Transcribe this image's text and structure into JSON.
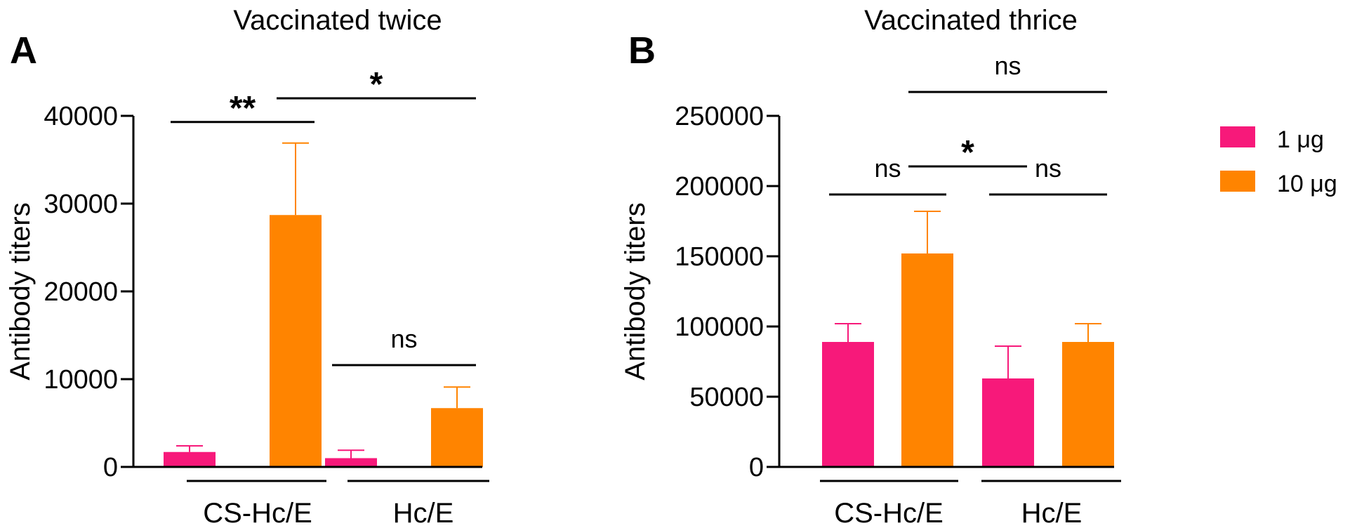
{
  "colors": {
    "one_ug": "#F7197A",
    "ten_ug": "#FF8400",
    "axis": "#000000"
  },
  "legend": [
    {
      "label": "1 μg",
      "color": "#F7197A"
    },
    {
      "label": "10 μg",
      "color": "#FF8400"
    }
  ],
  "chart_data": [
    {
      "type": "bar",
      "panel": "A",
      "title": "Vaccinated twice",
      "xlabel": "",
      "ylabel": "Antibody titers",
      "ylim": [
        0,
        40000
      ],
      "yticks": [
        0,
        10000,
        20000,
        30000,
        40000
      ],
      "ytick_labels": [
        "0",
        "10000",
        "20000",
        "30000",
        "40000"
      ],
      "groups": [
        "CS-Hc/E",
        "Hc/E"
      ],
      "series": [
        {
          "name": "1 μg",
          "values": [
            1700,
            1000
          ],
          "errors": [
            700,
            900
          ]
        },
        {
          "name": "10 μg",
          "values": [
            28700,
            6700
          ],
          "errors": [
            8200,
            2400
          ]
        }
      ],
      "significance": [
        {
          "label": "**",
          "from": [
            0,
            0
          ],
          "to": [
            0,
            1
          ],
          "y": 39300
        },
        {
          "label": "*",
          "from": [
            0,
            1
          ],
          "to": [
            1,
            1
          ],
          "y": 42000
        },
        {
          "label": "ns",
          "from": [
            1,
            0
          ],
          "to": [
            1,
            1
          ],
          "y": 11600
        }
      ]
    },
    {
      "type": "bar",
      "panel": "B",
      "title": "Vaccinated thrice",
      "xlabel": "",
      "ylabel": "Antibody titers",
      "ylim": [
        0,
        250000
      ],
      "yticks": [
        0,
        50000,
        100000,
        150000,
        200000,
        250000
      ],
      "ytick_labels": [
        "0",
        "50000",
        "100000",
        "150000",
        "200000",
        "250000"
      ],
      "groups": [
        "CS-Hc/E",
        "Hc/E"
      ],
      "series": [
        {
          "name": "1 μg",
          "values": [
            89000,
            63000
          ],
          "errors": [
            13000,
            23000
          ]
        },
        {
          "name": "10 μg",
          "values": [
            152000,
            89000
          ],
          "errors": [
            30000,
            13000
          ]
        }
      ],
      "significance": [
        {
          "label": "ns",
          "from": [
            0,
            0
          ],
          "to": [
            0,
            1
          ],
          "y": 194000
        },
        {
          "label": "*",
          "from": [
            0,
            1
          ],
          "to": [
            1,
            0
          ],
          "y": 214000
        },
        {
          "label": "ns",
          "from": [
            1,
            0
          ],
          "to": [
            1,
            1
          ],
          "y": 194000
        },
        {
          "label": "ns",
          "from": [
            0,
            1
          ],
          "to": [
            1,
            1
          ],
          "y": 267000
        }
      ]
    }
  ]
}
